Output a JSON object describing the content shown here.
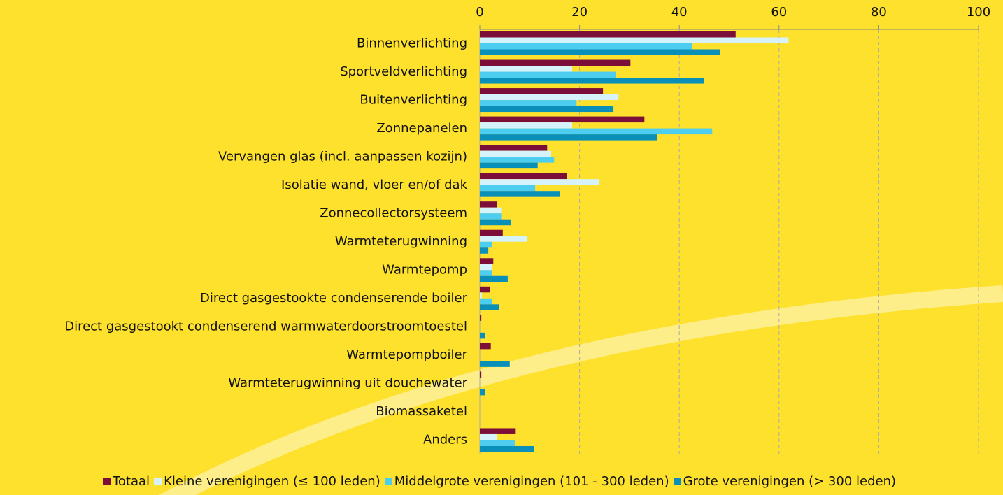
{
  "chart_data": {
    "type": "barh",
    "categories": [
      "Binnenverlichting",
      "Sportveldverlichting",
      "Buitenverlichting",
      "Zonnepanelen",
      "Vervangen glas (incl. aanpassen kozijn)",
      "Isolatie wand, vloer en/of dak",
      "Zonnecollectorsysteem",
      "Warmteterugwinning",
      "Warmtepomp",
      "Direct gasgestookte condenserende boiler",
      "Direct gasgestookt condenserend warmwaterdoorstroomtoestel",
      "Warmtepompboiler",
      "Warmteterugwinning uit douchewater",
      "Biomassaketel",
      "Anders"
    ],
    "series": [
      {
        "name": "Totaal",
        "color": "#7b0f3a",
        "values": [
          51.3,
          30.2,
          24.7,
          33,
          13.5,
          17.4,
          3.5,
          4.6,
          2.7,
          2.1,
          0.3,
          2.2,
          0.3,
          0,
          7.2
        ]
      },
      {
        "name": "Kleine verenigingen (≤ 100 leden)",
        "color": "#d6f3fb",
        "values": [
          61.9,
          18.5,
          27.8,
          18.5,
          14.3,
          24,
          4.3,
          9.4,
          2.4,
          0.4,
          0,
          0,
          0,
          0,
          3.5
        ]
      },
      {
        "name": "Middelgrote verenigingen (101 - 300 leden)",
        "color": "#4dcdf0",
        "values": [
          42.6,
          27.2,
          19.4,
          46.6,
          14.9,
          11.1,
          4.3,
          2.4,
          2.4,
          2.4,
          0,
          0,
          0,
          0,
          7.0
        ]
      },
      {
        "name": "Grote verenigingen (> 300 leden)",
        "color": "#0a90b8",
        "values": [
          48.2,
          44.9,
          26.8,
          35.5,
          11.6,
          16.1,
          6.2,
          1.7,
          5.6,
          3.8,
          1.1,
          6.0,
          1.1,
          0,
          10.9
        ]
      }
    ],
    "xlim": [
      0,
      100
    ],
    "xticks": [
      0,
      20,
      40,
      60,
      80,
      100
    ],
    "grid": true,
    "legend": "bottom"
  }
}
